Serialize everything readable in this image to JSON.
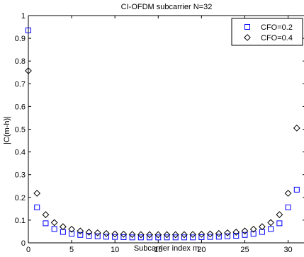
{
  "chart_data": {
    "type": "scatter",
    "title": "CI-OFDM subcarrier N=32",
    "xlabel": "Subcarrier index m",
    "ylabel": "|C(m-h)|",
    "xlim": [
      0,
      32
    ],
    "ylim": [
      0,
      1
    ],
    "xticks": [
      0,
      5,
      10,
      15,
      20,
      25,
      30
    ],
    "yticks": [
      0,
      0.1,
      0.2,
      0.3,
      0.4,
      0.5,
      0.6,
      0.7,
      0.8,
      0.9,
      1
    ],
    "grid": false,
    "legend_position": "top-right",
    "x": [
      0,
      1,
      2,
      3,
      4,
      5,
      6,
      7,
      8,
      9,
      10,
      11,
      12,
      13,
      14,
      15,
      16,
      17,
      18,
      19,
      20,
      21,
      22,
      23,
      24,
      25,
      26,
      27,
      28,
      29,
      30,
      31
    ],
    "series": [
      {
        "name": "CFO=0.2",
        "marker": "square",
        "color": "#0000ff",
        "values": [
          0.935,
          0.156,
          0.086,
          0.061,
          0.048,
          0.04,
          0.035,
          0.031,
          0.029,
          0.027,
          0.026,
          0.025,
          0.024,
          0.024,
          0.024,
          0.024,
          0.024,
          0.024,
          0.024,
          0.024,
          0.025,
          0.026,
          0.027,
          0.029,
          0.031,
          0.035,
          0.04,
          0.048,
          0.061,
          0.086,
          0.156,
          0.234
        ]
      },
      {
        "name": "CFO=0.4",
        "marker": "diamond",
        "color": "#000000",
        "values": [
          0.757,
          0.218,
          0.124,
          0.089,
          0.071,
          0.06,
          0.052,
          0.047,
          0.044,
          0.041,
          0.039,
          0.038,
          0.037,
          0.036,
          0.036,
          0.036,
          0.036,
          0.036,
          0.036,
          0.037,
          0.038,
          0.039,
          0.041,
          0.044,
          0.047,
          0.052,
          0.06,
          0.071,
          0.089,
          0.124,
          0.218,
          0.505
        ]
      }
    ]
  }
}
